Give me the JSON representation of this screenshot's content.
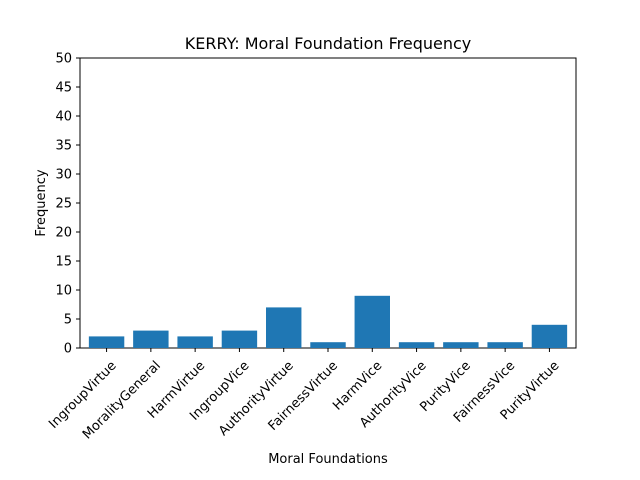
{
  "chart_data": {
    "type": "bar",
    "title": "KERRY: Moral Foundation Frequency",
    "xlabel": "Moral Foundations",
    "ylabel": "Frequency",
    "categories": [
      "IngroupVirtue",
      "MoralityGeneral",
      "HarmVirtue",
      "IngroupVice",
      "AuthorityVirtue",
      "FairnessVirtue",
      "HarmVice",
      "AuthorityVice",
      "PurityVice",
      "FairnessVice",
      "PurityVirtue"
    ],
    "values": [
      2,
      3,
      2,
      3,
      7,
      1,
      9,
      1,
      1,
      1,
      4
    ],
    "ylim": [
      0,
      50
    ],
    "yticks": [
      "0",
      "5",
      "10",
      "15",
      "20",
      "25",
      "30",
      "35",
      "40",
      "45",
      "50"
    ],
    "bar_color": "#1f77b4",
    "grid": false,
    "legend": "none"
  }
}
